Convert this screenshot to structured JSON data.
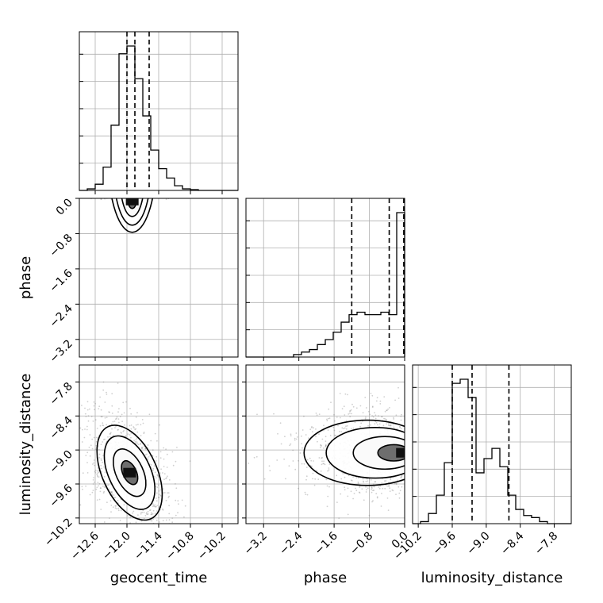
{
  "chart_data": {
    "type": "corner",
    "parameters": [
      "geocent_time",
      "phase",
      "luminosity_distance"
    ],
    "axis_labels": {
      "geocent_time": "geocent_time",
      "phase": "phase",
      "luminosity_distance": "luminosity_distance"
    },
    "ranges": {
      "geocent_time": [
        -12.9,
        -9.9
      ],
      "phase": [
        -3.6,
        0.0
      ],
      "luminosity_distance": [
        -10.3,
        -7.5
      ]
    },
    "tick_values": {
      "geocent_time": [
        -12.6,
        -12.0,
        -11.4,
        -10.8,
        -10.2
      ],
      "phase": [
        -3.2,
        -2.4,
        -1.6,
        -0.8,
        0.0
      ],
      "luminosity_distance": [
        -10.2,
        -9.6,
        -9.0,
        -8.4,
        -7.8
      ]
    },
    "tick_labels": {
      "geocent_time": [
        "−12.6",
        "−12.0",
        "−11.4",
        "−10.8",
        "−10.2"
      ],
      "phase": [
        "−3.2",
        "−2.4",
        "−1.6",
        "−0.8",
        "0.0"
      ],
      "luminosity_distance": [
        "−10.2",
        "−9.6",
        "−9.0",
        "−8.4",
        "−7.8"
      ]
    },
    "histograms": {
      "geocent_time": {
        "bin_edges": [
          -12.9,
          -12.75,
          -12.6,
          -12.45,
          -12.3,
          -12.15,
          -12.0,
          -11.85,
          -11.7,
          -11.55,
          -11.4,
          -11.25,
          -11.1,
          -10.95,
          -10.8,
          -10.65,
          -10.5,
          -10.35,
          -10.2,
          -10.05,
          -9.9
        ],
        "counts": [
          0,
          1,
          4,
          15,
          42,
          88,
          93,
          72,
          48,
          26,
          14,
          8,
          3,
          1,
          0.5,
          0,
          0,
          0,
          0,
          0
        ],
        "quantiles": [
          -12.0,
          -11.85,
          -11.58
        ]
      },
      "phase": {
        "bin_edges": [
          -3.6,
          -3.42,
          -3.24,
          -3.06,
          -2.88,
          -2.7,
          -2.52,
          -2.34,
          -2.16,
          -1.98,
          -1.8,
          -1.62,
          -1.44,
          -1.26,
          -1.08,
          -0.9,
          -0.72,
          -0.54,
          -0.36,
          -0.18,
          0.0
        ],
        "counts": [
          0,
          0,
          0,
          0,
          0,
          0,
          1,
          2,
          3,
          5,
          7,
          10,
          14,
          17,
          18,
          17,
          17,
          18,
          17,
          58
        ],
        "quantiles": [
          -1.2,
          -0.35,
          -0.02
        ]
      },
      "luminosity_distance": {
        "bin_edges": [
          -10.3,
          -10.16,
          -10.02,
          -9.88,
          -9.74,
          -9.6,
          -9.46,
          -9.32,
          -9.18,
          -9.04,
          -8.9,
          -8.76,
          -8.62,
          -8.48,
          -8.34,
          -8.2,
          -8.06,
          -7.92,
          -7.78,
          -7.64,
          -7.5
        ],
        "counts": [
          0,
          1,
          5,
          14,
          30,
          69,
          71,
          62,
          25,
          32,
          37,
          28,
          14,
          7,
          4,
          3,
          1,
          0,
          0,
          0
        ],
        "quantiles": [
          -9.6,
          -9.25,
          -8.6
        ]
      }
    },
    "pairs": [
      {
        "x": "geocent_time",
        "y": "phase",
        "mode": [
          -11.9,
          -0.05
        ]
      },
      {
        "x": "geocent_time",
        "y": "luminosity_distance",
        "mode": [
          -11.95,
          -9.4
        ]
      },
      {
        "x": "phase",
        "y": "luminosity_distance",
        "mode": [
          -0.05,
          -9.05
        ]
      }
    ]
  }
}
